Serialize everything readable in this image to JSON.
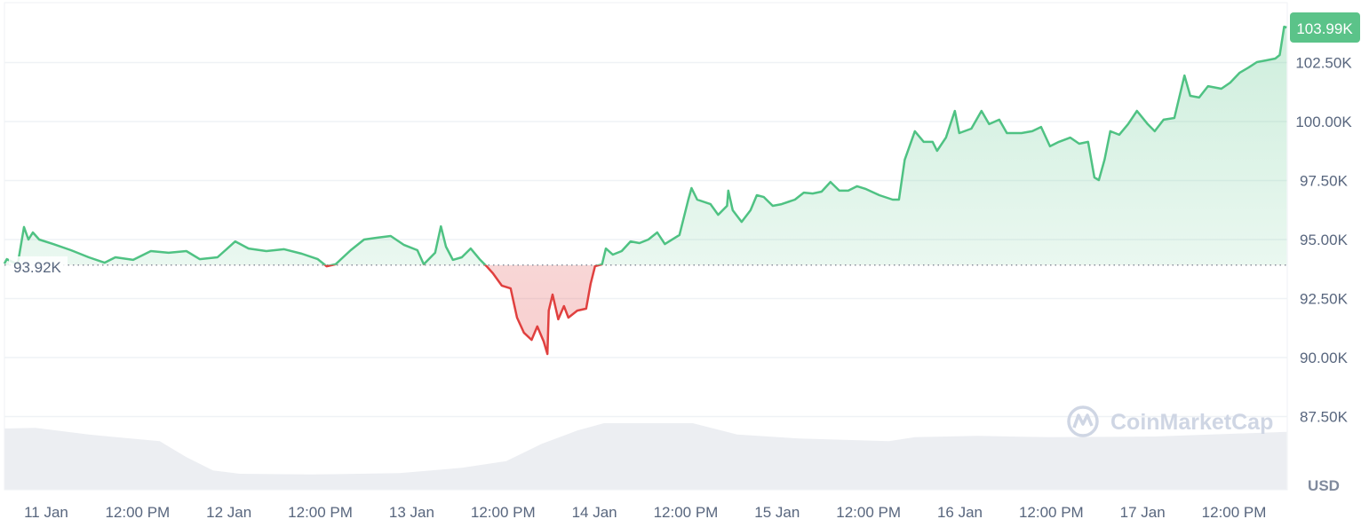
{
  "chart_data": {
    "type": "area",
    "currency_label": "USD",
    "watermark": "CoinMarketCap",
    "colors": {
      "up": "#4fc283",
      "down": "#e0403f",
      "grid": "#eff2f5",
      "volume": "#eceef2",
      "badge": "#5bc389"
    },
    "baseline": {
      "value": 93.92,
      "label": "93.92K"
    },
    "current": {
      "value": 103.99,
      "label": "103.99K"
    },
    "y_unit": "K USD",
    "ylim": [
      85.5,
      104.6
    ],
    "yticks": [
      {
        "value": 102.5,
        "label": "102.50K"
      },
      {
        "value": 100,
        "label": "100.00K"
      },
      {
        "value": 97.5,
        "label": "97.50K"
      },
      {
        "value": 95,
        "label": "95.00K"
      },
      {
        "value": 92.5,
        "label": "92.50K"
      },
      {
        "value": 90,
        "label": "90.00K"
      },
      {
        "value": 87.5,
        "label": "87.50K"
      }
    ],
    "xticks": [
      {
        "time": "11 Jan 00:00",
        "label": "11 Jan"
      },
      {
        "time": "11 Jan 12:00",
        "label": "12:00 PM"
      },
      {
        "time": "12 Jan 00:00",
        "label": "12 Jan"
      },
      {
        "time": "12 Jan 12:00",
        "label": "12:00 PM"
      },
      {
        "time": "13 Jan 00:00",
        "label": "13 Jan"
      },
      {
        "time": "13 Jan 12:00",
        "label": "12:00 PM"
      },
      {
        "time": "14 Jan 00:00",
        "label": "14 Jan"
      },
      {
        "time": "14 Jan 12:00",
        "label": "12:00 PM"
      },
      {
        "time": "15 Jan 00:00",
        "label": "15 Jan"
      },
      {
        "time": "15 Jan 12:00",
        "label": "12:00 PM"
      },
      {
        "time": "16 Jan 00:00",
        "label": "16 Jan"
      },
      {
        "time": "16 Jan 12:00",
        "label": "12:00 PM"
      },
      {
        "time": "17 Jan 00:00",
        "label": "17 Jan"
      },
      {
        "time": "17 Jan 12:00",
        "label": "12:00 PM"
      }
    ],
    "series": [
      {
        "values": [
          [
            "10 Jan 18:30",
            93.98
          ],
          [
            "10 Jan 18:50",
            94.17
          ],
          [
            "10 Jan 20:15",
            93.95
          ],
          [
            "10 Jan 21:05",
            95.53
          ],
          [
            "10 Jan 21:40",
            95.0
          ],
          [
            "10 Jan 22:15",
            95.3
          ],
          [
            "10 Jan 23:05",
            95.0
          ],
          [
            "11 Jan 00:55",
            94.81
          ],
          [
            "11 Jan 03:15",
            94.55
          ],
          [
            "11 Jan 05:35",
            94.25
          ],
          [
            "11 Jan 07:40",
            94.02
          ],
          [
            "11 Jan 09:05",
            94.25
          ],
          [
            "11 Jan 11:25",
            94.14
          ],
          [
            "11 Jan 13:45",
            94.51
          ],
          [
            "11 Jan 16:05",
            94.44
          ],
          [
            "11 Jan 18:25",
            94.51
          ],
          [
            "11 Jan 20:10",
            94.17
          ],
          [
            "11 Jan 22:30",
            94.25
          ],
          [
            "12 Jan 00:50",
            94.92
          ],
          [
            "12 Jan 02:35",
            94.62
          ],
          [
            "12 Jan 04:55",
            94.51
          ],
          [
            "12 Jan 07:15",
            94.59
          ],
          [
            "12 Jan 09:35",
            94.4
          ],
          [
            "12 Jan 11:40",
            94.17
          ],
          [
            "12 Jan 12:50",
            93.87
          ],
          [
            "12 Jan 14:00",
            93.95
          ],
          [
            "12 Jan 16:00",
            94.55
          ],
          [
            "12 Jan 17:45",
            95.0
          ],
          [
            "12 Jan 19:30",
            95.08
          ],
          [
            "12 Jan 21:15",
            95.15
          ],
          [
            "12 Jan 23:00",
            94.77
          ],
          [
            "13 Jan 00:45",
            94.55
          ],
          [
            "13 Jan 01:35",
            93.95
          ],
          [
            "13 Jan 03:05",
            94.44
          ],
          [
            "13 Jan 03:50",
            95.56
          ],
          [
            "13 Jan 04:30",
            94.7
          ],
          [
            "13 Jan 05:25",
            94.14
          ],
          [
            "13 Jan 06:35",
            94.25
          ],
          [
            "13 Jan 07:45",
            94.62
          ],
          [
            "13 Jan 08:55",
            94.17
          ],
          [
            "13 Jan 09:50",
            93.87
          ],
          [
            "13 Jan 10:40",
            93.57
          ],
          [
            "13 Jan 11:50",
            93.05
          ],
          [
            "13 Jan 13:00",
            92.93
          ],
          [
            "13 Jan 13:50",
            91.69
          ],
          [
            "13 Jan 14:45",
            91.05
          ],
          [
            "13 Jan 15:45",
            90.75
          ],
          [
            "13 Jan 16:30",
            91.32
          ],
          [
            "13 Jan 17:20",
            90.68
          ],
          [
            "13 Jan 17:50",
            90.15
          ],
          [
            "13 Jan 18:00",
            91.99
          ],
          [
            "13 Jan 18:30",
            92.67
          ],
          [
            "13 Jan 19:15",
            91.62
          ],
          [
            "13 Jan 20:00",
            92.18
          ],
          [
            "13 Jan 20:35",
            91.69
          ],
          [
            "13 Jan 21:45",
            91.99
          ],
          [
            "13 Jan 22:55",
            92.07
          ],
          [
            "13 Jan 23:30",
            93.12
          ],
          [
            "14 Jan 00:05",
            93.87
          ],
          [
            "14 Jan 01:00",
            93.95
          ],
          [
            "14 Jan 01:30",
            94.62
          ],
          [
            "14 Jan 02:25",
            94.36
          ],
          [
            "14 Jan 03:35",
            94.51
          ],
          [
            "14 Jan 04:45",
            94.92
          ],
          [
            "14 Jan 05:55",
            94.85
          ],
          [
            "14 Jan 07:05",
            95.0
          ],
          [
            "14 Jan 08:15",
            95.3
          ],
          [
            "14 Jan 09:15",
            94.81
          ],
          [
            "14 Jan 11:10",
            95.19
          ],
          [
            "14 Jan 12:20",
            96.69
          ],
          [
            "14 Jan 12:45",
            97.18
          ],
          [
            "14 Jan 13:30",
            96.69
          ],
          [
            "14 Jan 15:15",
            96.5
          ],
          [
            "14 Jan 16:15",
            96.05
          ],
          [
            "14 Jan 17:25",
            96.43
          ],
          [
            "14 Jan 17:35",
            97.07
          ],
          [
            "14 Jan 18:10",
            96.24
          ],
          [
            "14 Jan 19:20",
            95.75
          ],
          [
            "14 Jan 20:30",
            96.24
          ],
          [
            "14 Jan 21:20",
            96.88
          ],
          [
            "14 Jan 22:15",
            96.8
          ],
          [
            "14 Jan 23:25",
            96.43
          ],
          [
            "15 Jan 00:35",
            96.5
          ],
          [
            "15 Jan 02:20",
            96.69
          ],
          [
            "15 Jan 03:30",
            96.99
          ],
          [
            "15 Jan 04:40",
            96.95
          ],
          [
            "15 Jan 05:50",
            97.03
          ],
          [
            "15 Jan 07:00",
            97.44
          ],
          [
            "15 Jan 08:10",
            97.07
          ],
          [
            "15 Jan 09:20",
            97.07
          ],
          [
            "15 Jan 10:30",
            97.26
          ],
          [
            "15 Jan 11:40",
            97.14
          ],
          [
            "15 Jan 13:25",
            96.88
          ],
          [
            "15 Jan 15:10",
            96.69
          ],
          [
            "15 Jan 16:00",
            96.69
          ],
          [
            "15 Jan 16:45",
            98.38
          ],
          [
            "15 Jan 18:05",
            99.59
          ],
          [
            "15 Jan 19:15",
            99.14
          ],
          [
            "15 Jan 20:25",
            99.14
          ],
          [
            "15 Jan 21:00",
            98.76
          ],
          [
            "15 Jan 22:10",
            99.32
          ],
          [
            "15 Jan 23:20",
            100.45
          ],
          [
            "15 Jan 23:55",
            99.51
          ],
          [
            "16 Jan 01:30",
            99.7
          ],
          [
            "16 Jan 02:50",
            100.45
          ],
          [
            "16 Jan 03:50",
            99.89
          ],
          [
            "16 Jan 05:10",
            100.08
          ],
          [
            "16 Jan 06:10",
            99.51
          ],
          [
            "16 Jan 08:05",
            99.51
          ],
          [
            "16 Jan 09:30",
            99.59
          ],
          [
            "16 Jan 10:40",
            99.77
          ],
          [
            "16 Jan 11:50",
            98.95
          ],
          [
            "16 Jan 13:00",
            99.14
          ],
          [
            "16 Jan 14:30",
            99.32
          ],
          [
            "16 Jan 15:40",
            99.06
          ],
          [
            "16 Jan 16:50",
            99.14
          ],
          [
            "16 Jan 17:40",
            97.63
          ],
          [
            "16 Jan 18:15",
            97.52
          ],
          [
            "16 Jan 19:00",
            98.38
          ],
          [
            "16 Jan 19:45",
            99.59
          ],
          [
            "16 Jan 20:55",
            99.44
          ],
          [
            "16 Jan 22:05",
            99.89
          ],
          [
            "16 Jan 23:15",
            100.45
          ],
          [
            "17 Jan 00:40",
            99.89
          ],
          [
            "17 Jan 01:35",
            99.59
          ],
          [
            "17 Jan 02:45",
            100.08
          ],
          [
            "17 Jan 04:10",
            100.15
          ],
          [
            "17 Jan 05:30",
            101.95
          ],
          [
            "17 Jan 06:15",
            101.09
          ],
          [
            "17 Jan 07:25",
            101.02
          ],
          [
            "17 Jan 08:35",
            101.5
          ],
          [
            "17 Jan 10:20",
            101.39
          ],
          [
            "17 Jan 11:30",
            101.65
          ],
          [
            "17 Jan 12:45",
            102.07
          ],
          [
            "17 Jan 13:55",
            102.29
          ],
          [
            "17 Jan 15:00",
            102.52
          ],
          [
            "17 Jan 16:10",
            102.59
          ],
          [
            "17 Jan 17:25",
            102.67
          ],
          [
            "17 Jan 18:00",
            102.82
          ],
          [
            "17 Jan 18:35",
            104.02
          ],
          [
            "17 Jan 18:55",
            103.99
          ]
        ]
      }
    ],
    "volume_relative": [
      [
        "10 Jan 18:30",
        0.92
      ],
      [
        "10 Jan 22:35",
        0.93
      ],
      [
        "11 Jan 05:35",
        0.83
      ],
      [
        "11 Jan 14:55",
        0.73
      ],
      [
        "11 Jan 18:25",
        0.49
      ],
      [
        "11 Jan 21:55",
        0.29
      ],
      [
        "12 Jan 01:25",
        0.24
      ],
      [
        "12 Jan 10:45",
        0.23
      ],
      [
        "12 Jan 22:25",
        0.25
      ],
      [
        "13 Jan 06:35",
        0.33
      ],
      [
        "13 Jan 12:25",
        0.43
      ],
      [
        "13 Jan 17:05",
        0.69
      ],
      [
        "13 Jan 21:45",
        0.89
      ],
      [
        "14 Jan 01:15",
        1.0
      ],
      [
        "14 Jan 12:55",
        1.0
      ],
      [
        "14 Jan 18:45",
        0.83
      ],
      [
        "15 Jan 02:55",
        0.77
      ],
      [
        "15 Jan 14:40",
        0.73
      ],
      [
        "15 Jan 18:05",
        0.79
      ],
      [
        "16 Jan 02:20",
        0.81
      ],
      [
        "16 Jan 11:40",
        0.79
      ],
      [
        "17 Jan 01:35",
        0.8
      ],
      [
        "17 Jan 18:55",
        0.87
      ]
    ]
  }
}
